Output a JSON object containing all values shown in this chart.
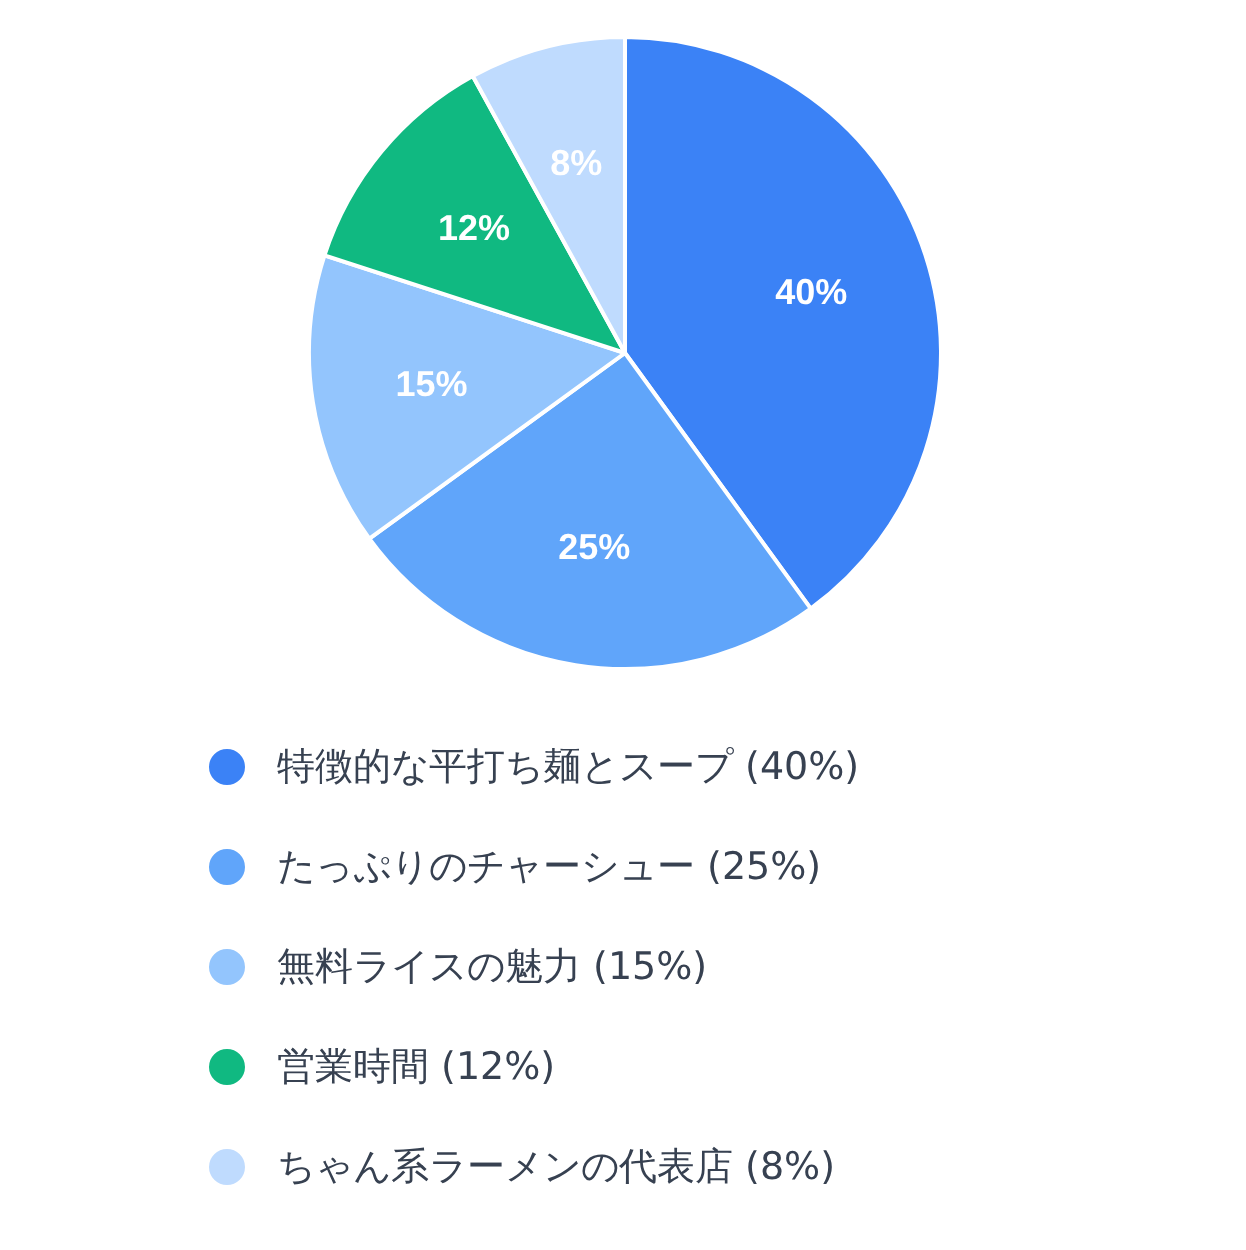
{
  "chart_data": {
    "type": "pie",
    "categories": [
      "特徴的な平打ち麺とスープ (40%)",
      "たっぷりのチャーシュー (25%)",
      "無料ライスの魅力 (15%)",
      "営業時間 (12%)",
      "ちゃん系ラーメンの代表店 (8%)"
    ],
    "values": [
      40,
      25,
      15,
      12,
      8
    ],
    "colors": [
      "#3b82f6",
      "#60a5fa",
      "#93c5fd",
      "#10b981",
      "#bfdbfe"
    ],
    "value_labels": [
      "40%",
      "25%",
      "15%",
      "12%",
      "8%"
    ],
    "legend": "bottom"
  }
}
